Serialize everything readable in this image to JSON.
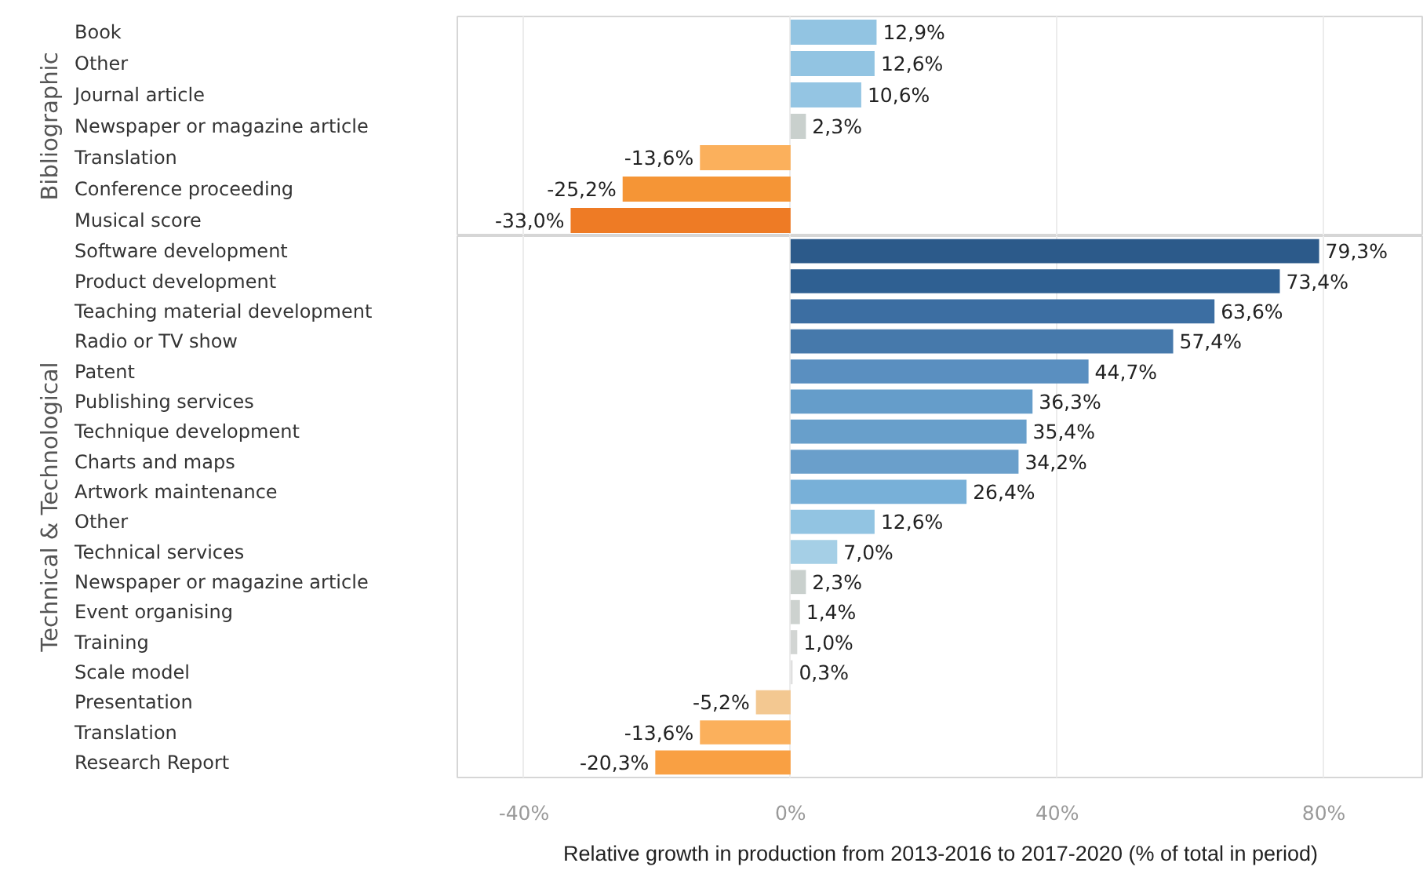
{
  "chart_data": [
    {
      "type": "bar",
      "orientation": "horizontal",
      "ylabel": "Bibliographic",
      "categories": [
        "Book",
        "Other",
        "Journal article",
        "Newspaper or magazine article",
        "Translation",
        "Conference proceeding",
        "Musical score"
      ],
      "values": [
        12.9,
        12.6,
        10.6,
        2.3,
        -13.6,
        -25.2,
        -33.0
      ],
      "colors": [
        "#92c4e2",
        "#92c4e2",
        "#94c5e3",
        "#c9d0cd",
        "#fbb05c",
        "#f59536",
        "#ee7b25"
      ],
      "value_labels": [
        "12,9%",
        "12,6%",
        "10,6%",
        "2,3%",
        "-13,6%",
        "-25,2%",
        "-33,0%"
      ],
      "xlim": [
        -50,
        95
      ],
      "xticks": [
        {
          "value": -40,
          "label": null
        },
        {
          "value": 0,
          "label": null
        },
        {
          "value": 40,
          "label": null
        },
        {
          "value": 80,
          "label": null
        }
      ],
      "grid": "x",
      "tick_labels": "y"
    },
    {
      "type": "bar",
      "orientation": "horizontal",
      "ylabel": "Technical & Technological",
      "xlabel": "Relative growth in production from 2013-2016 to 2017-2020 (% of total in period)",
      "categories": [
        "Software development",
        "Product development",
        "Teaching material development",
        "Radio or TV show",
        "Patent",
        "Publishing services",
        "Technique development",
        "Charts and maps",
        "Artwork maintenance",
        "Other",
        "Technical services",
        "Newspaper or magazine article",
        "Event organising",
        "Training",
        "Scale model",
        "Presentation",
        "Translation",
        "Research Report"
      ],
      "values": [
        79.3,
        73.4,
        63.6,
        57.4,
        44.7,
        36.3,
        35.4,
        34.2,
        26.4,
        12.6,
        7.0,
        2.3,
        1.4,
        1.0,
        0.3,
        -5.2,
        -13.6,
        -20.3
      ],
      "colors": [
        "#2c5a8a",
        "#2f6092",
        "#3c6ea2",
        "#4679ab",
        "#5a8fc0",
        "#659dca",
        "#689fcb",
        "#6a9fcb",
        "#78b0d8",
        "#92c4e2",
        "#a5cfe6",
        "#c9d0cd",
        "#cdd2cf",
        "#d2d5d3",
        "#e0e0e0",
        "#f3c891",
        "#fbb05c",
        "#f9a043"
      ],
      "value_labels": [
        "79,3%",
        "73,4%",
        "63,6%",
        "57,4%",
        "44,7%",
        "36,3%",
        "35,4%",
        "34,2%",
        "26,4%",
        "12,6%",
        "7,0%",
        "2,3%",
        "1,4%",
        "1,0%",
        "0,3%",
        "-5,2%",
        "-13,6%",
        "-20,3%"
      ],
      "xlim": [
        -50,
        95
      ],
      "xticks": [
        {
          "value": -40,
          "label": "-40%"
        },
        {
          "value": 0,
          "label": "0%"
        },
        {
          "value": 40,
          "label": "40%"
        },
        {
          "value": 80,
          "label": "80%"
        }
      ],
      "grid": "x"
    }
  ]
}
